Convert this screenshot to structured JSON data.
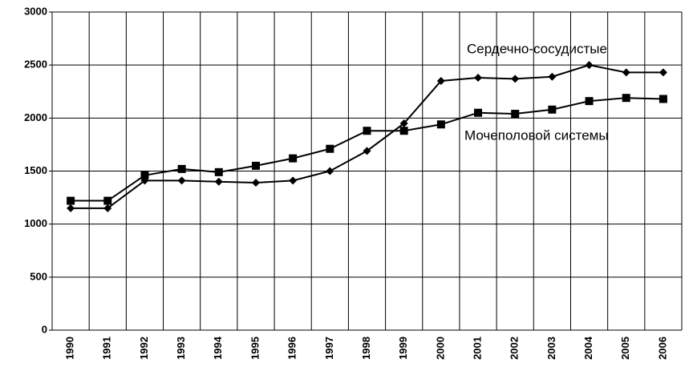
{
  "chart_data": {
    "type": "line",
    "categories": [
      "1990",
      "1991",
      "1992",
      "1993",
      "1994",
      "1995",
      "1996",
      "1997",
      "1998",
      "1999",
      "2000",
      "2001",
      "2002",
      "2003",
      "2004",
      "2005",
      "2006"
    ],
    "series": [
      {
        "name": "Сердечно-сосудистые",
        "color": "#000000",
        "marker": "diamond",
        "values": [
          1150,
          1150,
          1410,
          1410,
          1400,
          1390,
          1410,
          1500,
          1690,
          1950,
          2350,
          2380,
          2370,
          2390,
          2500,
          2430,
          2430
        ]
      },
      {
        "name": "Мочеполовой системы",
        "color": "#000000",
        "marker": "square",
        "values": [
          1220,
          1220,
          1460,
          1520,
          1490,
          1550,
          1620,
          1710,
          1880,
          1880,
          1940,
          2050,
          2040,
          2080,
          2160,
          2190,
          2180
        ]
      }
    ],
    "ylim": [
      0,
      3000
    ],
    "yticks": [
      0,
      500,
      1000,
      1500,
      2000,
      2500,
      3000
    ],
    "grid": true
  }
}
